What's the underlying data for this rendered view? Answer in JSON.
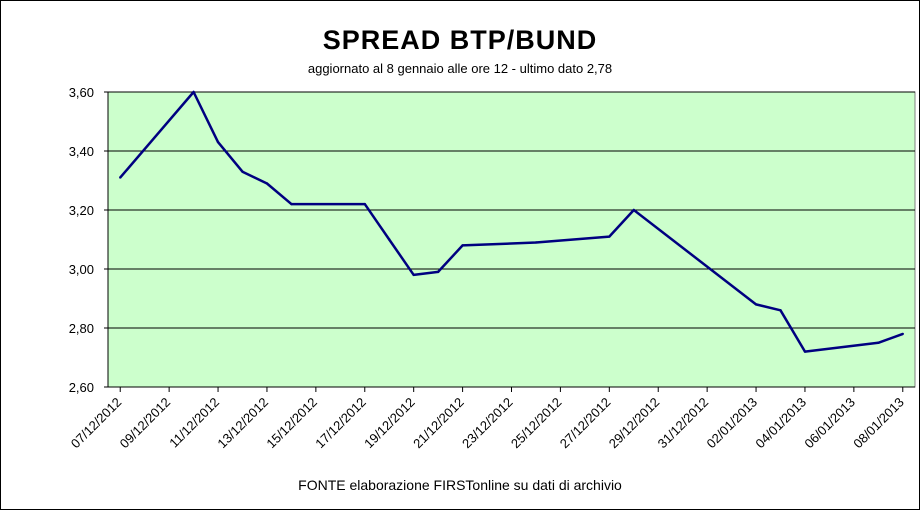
{
  "chart_data": {
    "type": "line",
    "title": "SPREAD  BTP/BUND",
    "subtitle": "aggiornato al 8 gennaio alle ore 12 - ultimo dato 2,78",
    "source": "FONTE elaborazione FIRSTonline su dati di archivio",
    "ylim": [
      2.6,
      3.6
    ],
    "y_ticks": [
      "2,60",
      "2,80",
      "3,00",
      "3,20",
      "3,40",
      "3,60"
    ],
    "x_tick_labels": [
      "07/12/2012",
      "09/12/2012",
      "11/12/2012",
      "13/12/2012",
      "15/12/2012",
      "17/12/2012",
      "19/12/2012",
      "21/12/2012",
      "23/12/2012",
      "25/12/2012",
      "27/12/2012",
      "29/12/2012",
      "31/12/2012",
      "02/01/2013",
      "04/01/2013",
      "06/01/2013",
      "08/01/2013"
    ],
    "x": [
      "07/12/2012",
      "10/12/2012",
      "11/12/2012",
      "12/12/2012",
      "13/12/2012",
      "14/12/2012",
      "17/12/2012",
      "18/12/2012",
      "19/12/2012",
      "20/12/2012",
      "21/12/2012",
      "24/12/2012",
      "27/12/2012",
      "28/12/2012",
      "02/01/2013",
      "03/01/2013",
      "04/01/2013",
      "07/01/2013",
      "08/01/2013"
    ],
    "series": [
      {
        "values": [
          3.31,
          3.6,
          3.43,
          3.33,
          3.29,
          3.22,
          3.22,
          3.1,
          2.98,
          2.99,
          3.08,
          3.09,
          3.11,
          3.2,
          2.88,
          2.86,
          2.72,
          2.75,
          2.78
        ]
      }
    ],
    "grid": "horizontal",
    "colors": {
      "plot_background": "#ccffcc",
      "line": "#000080",
      "gridline": "#000000"
    }
  }
}
